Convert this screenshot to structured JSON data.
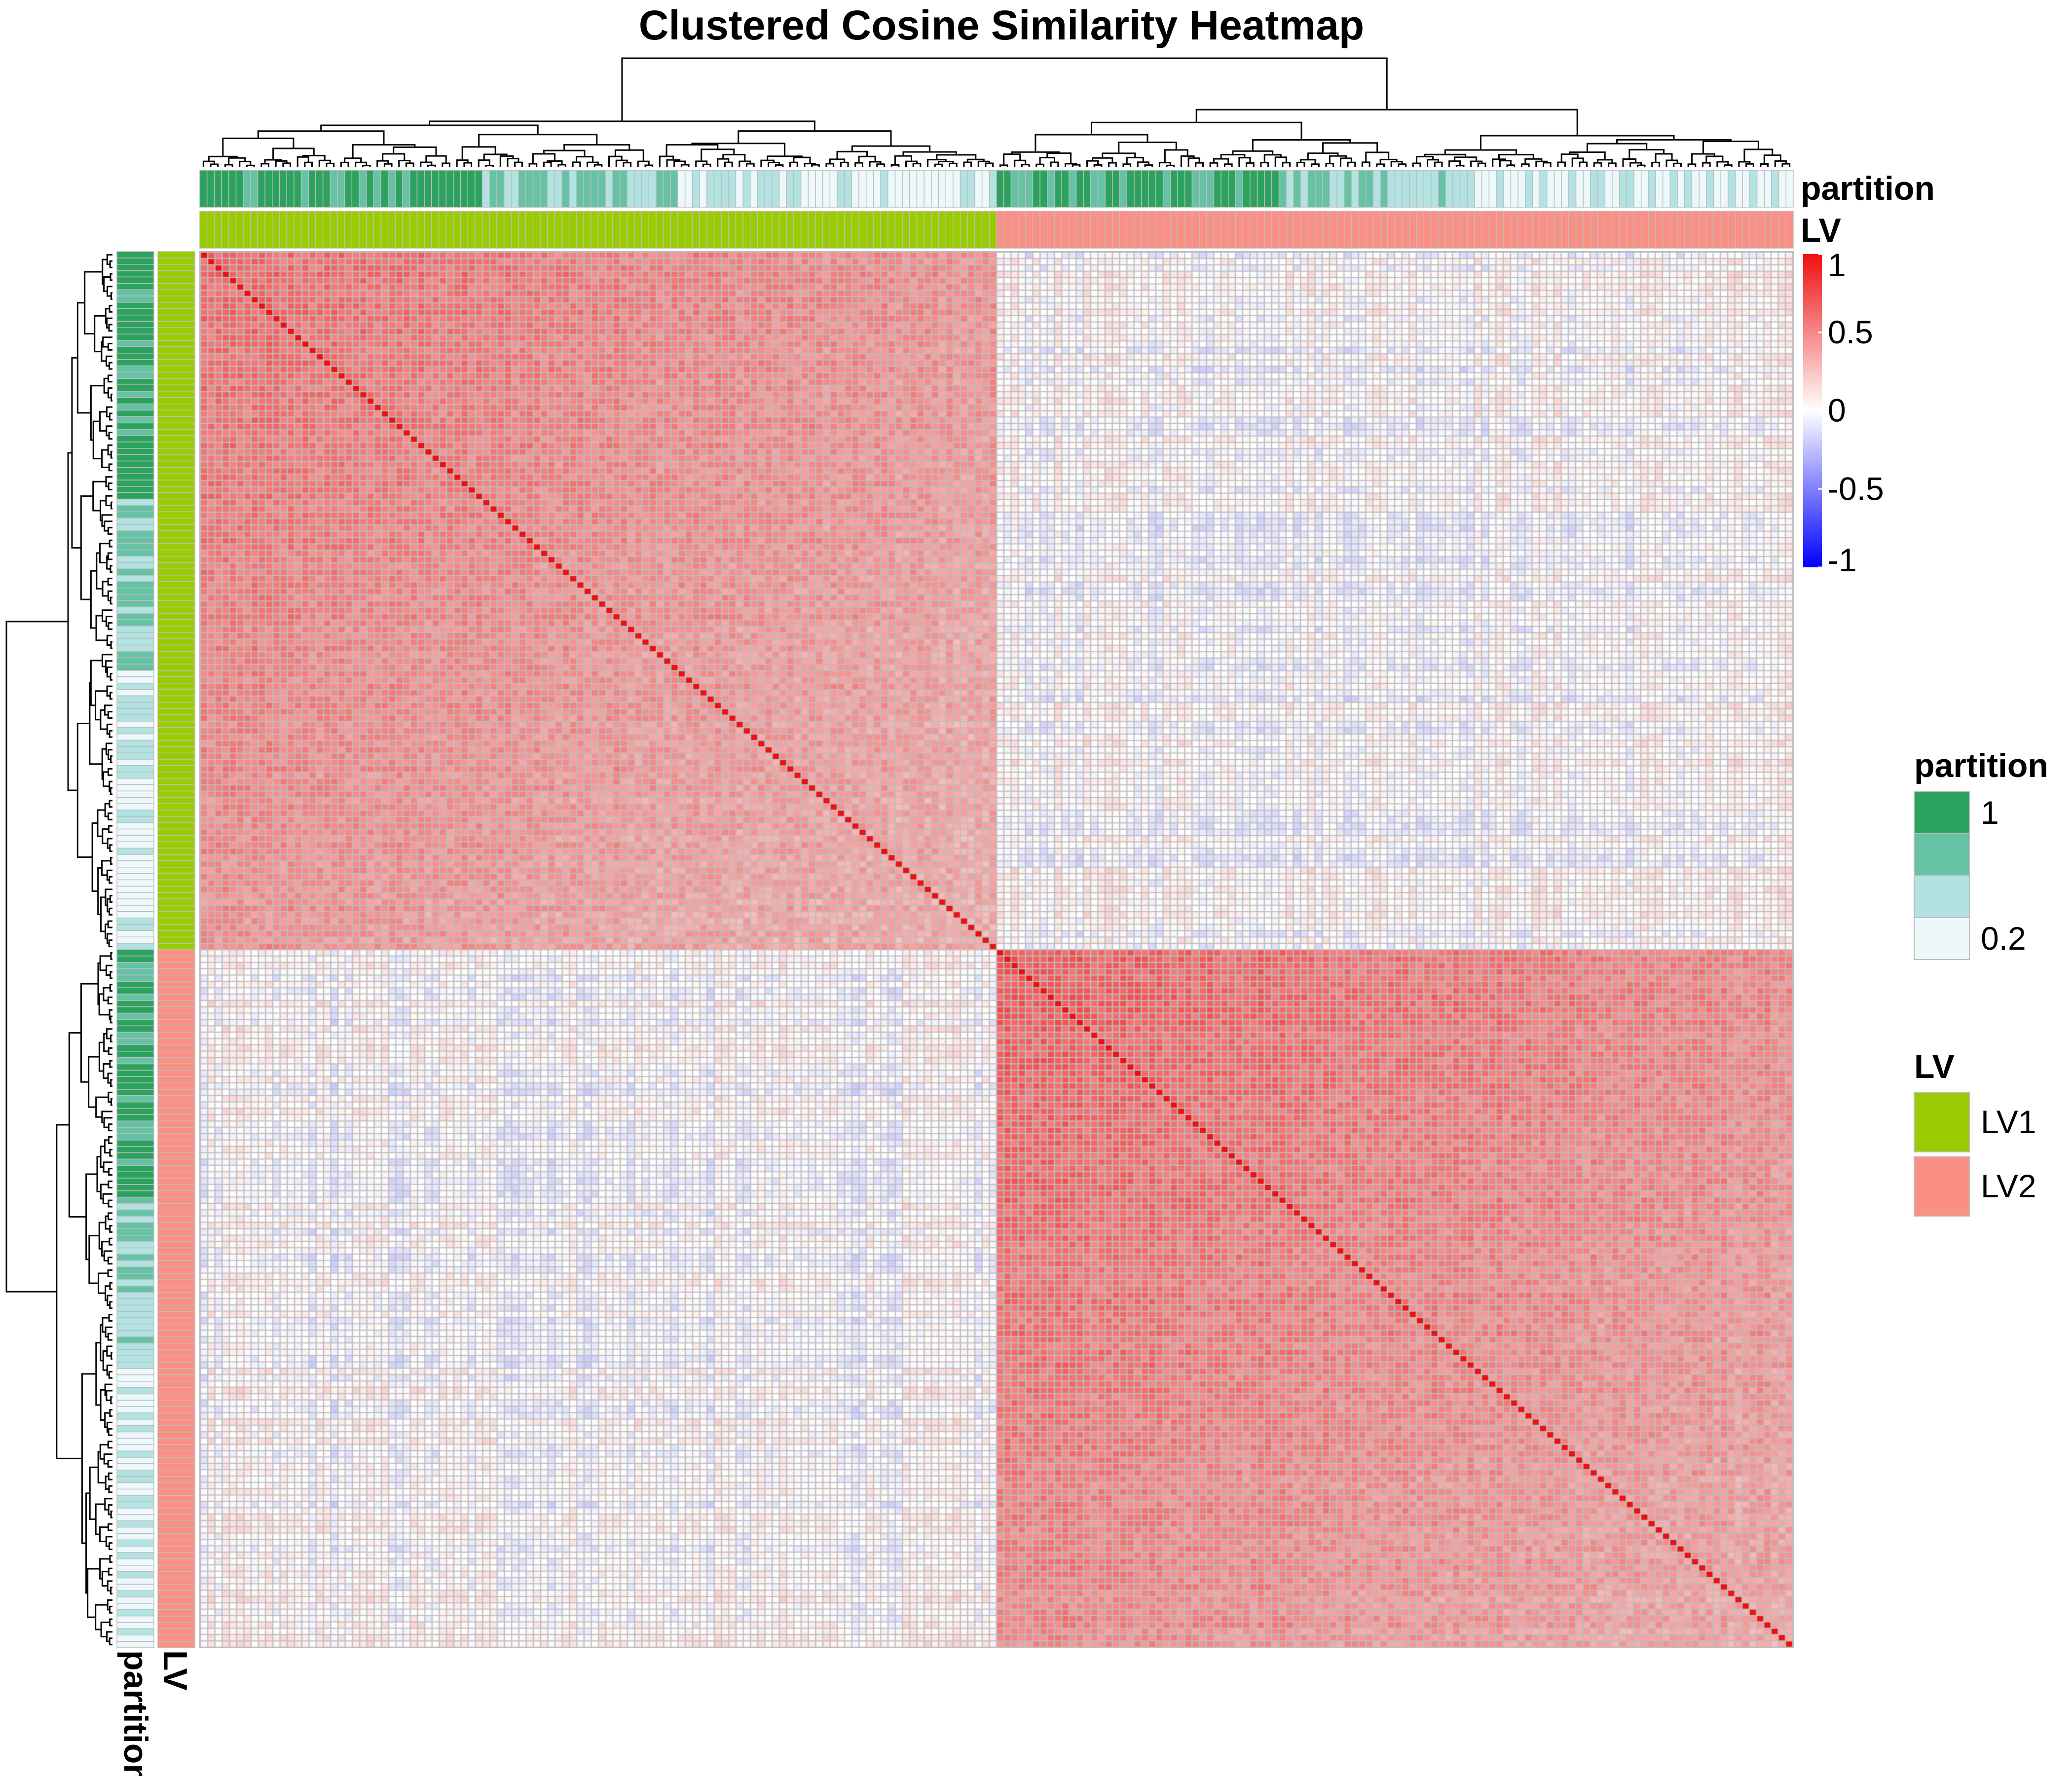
{
  "chart_data": {
    "type": "heatmap",
    "title": "Clustered Cosine Similarity Heatmap",
    "n_items": 220,
    "color_scale": {
      "min": -1,
      "mid": 0,
      "max": 1,
      "low_color": "#0000FF",
      "mid_color": "#FFFFFF",
      "high_color": "#EE1010",
      "ticks": [
        "1",
        "0.5",
        "0",
        "-0.5",
        "-1"
      ],
      "tick_values": [
        1,
        0.5,
        0,
        -0.5,
        -1
      ]
    },
    "annotations": {
      "partition": {
        "label": "partition",
        "legend_title": "partition",
        "levels": [
          {
            "label": "1",
            "value": 1,
            "color": "#2CA25F"
          },
          {
            "label": "",
            "value": 0.73,
            "color": "#66C2A4"
          },
          {
            "label": "",
            "value": 0.47,
            "color": "#B2E2E2"
          },
          {
            "label": "0.2",
            "value": 0.2,
            "color": "#EDF8FB"
          }
        ]
      },
      "LV": {
        "label": "LV",
        "legend_title": "LV",
        "levels": [
          {
            "label": "LV1",
            "color": "#99CC00"
          },
          {
            "label": "LV2",
            "color": "#FA8F84"
          }
        ],
        "counts": [
          110,
          110
        ]
      }
    },
    "blocks": {
      "LV1_within_similarity": 0.62,
      "LV2_within_similarity": 0.68,
      "between_similarity": 0.02,
      "diagonal": 1.0
    },
    "dendrogram": {
      "top": true,
      "left": true
    },
    "legend_position": "right",
    "grid": true
  }
}
